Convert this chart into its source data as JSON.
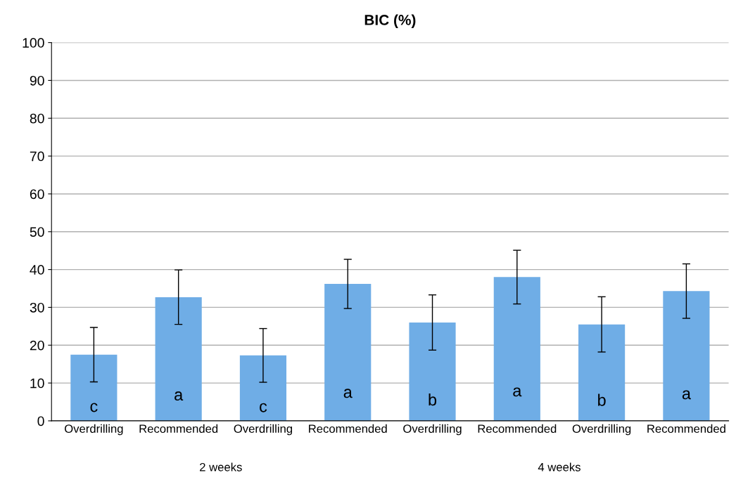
{
  "chart_data": {
    "type": "bar",
    "title": "BIC (%)",
    "categories": [
      "Overdrilling",
      "Recommended",
      "Overdrilling",
      "Recommended",
      "Overdrilling",
      "Recommended",
      "Overdrilling",
      "Recommended"
    ],
    "values": [
      17.5,
      32.7,
      17.3,
      36.2,
      26.0,
      38.0,
      25.5,
      34.3
    ],
    "errors": [
      7.2,
      7.2,
      7.1,
      6.5,
      7.3,
      7.1,
      7.3,
      7.2
    ],
    "value_labels": [
      "c",
      "a",
      "c",
      "a",
      "b",
      "a",
      "b",
      "a"
    ],
    "color": "#6fade6",
    "ylim": [
      0,
      100
    ],
    "yticks": [
      0,
      10,
      20,
      30,
      40,
      50,
      60,
      70,
      80,
      90,
      100
    ],
    "grid": "y",
    "annotations": [
      "2 weeks",
      "4 weeks"
    ]
  }
}
